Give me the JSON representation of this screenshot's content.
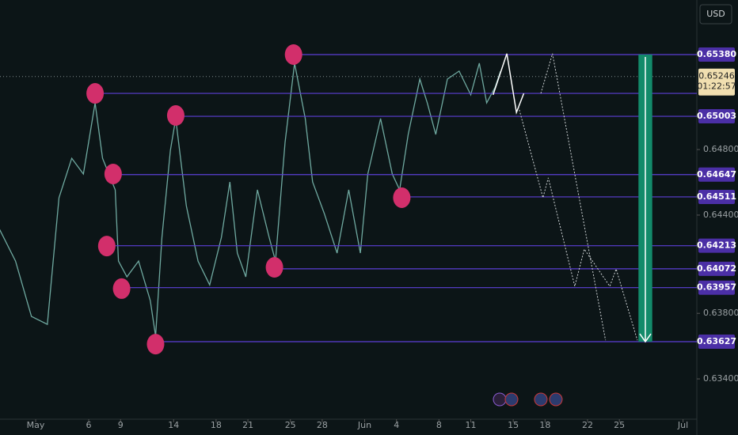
{
  "chart_data": {
    "type": "line",
    "currency": "USD",
    "x": [
      -3.4,
      -1.9,
      -0.4,
      1.1,
      2.2,
      3.4,
      4.5,
      5.6,
      6.3,
      7.5,
      7.8,
      8.6,
      9.7,
      10.8,
      11.3,
      11.9,
      12.7,
      13.2,
      14.2,
      15.3,
      16.4,
      17.5,
      18.3,
      19.0,
      19.8,
      20.9,
      22.0,
      22.6,
      23.5,
      24.4,
      25.4,
      26.1,
      27.2,
      28.4,
      29.5,
      30.6,
      31.3,
      32.5,
      33.6,
      34.3,
      35.1,
      36.2,
      36.9,
      37.7,
      38.8,
      39.9,
      41.0,
      41.8,
      42.5,
      43.3,
      43.8
    ],
    "values": [
      0.64313,
      0.64119,
      0.63781,
      0.63733,
      0.64506,
      0.64747,
      0.64651,
      0.65085,
      0.64747,
      0.64554,
      0.64119,
      0.64023,
      0.64119,
      0.63878,
      0.63661,
      0.64264,
      0.64796,
      0.64989,
      0.64457,
      0.64119,
      0.63974,
      0.64264,
      0.64602,
      0.64168,
      0.64023,
      0.64554,
      0.64264,
      0.64119,
      0.64844,
      0.65327,
      0.64989,
      0.64602,
      0.64409,
      0.64168,
      0.64554,
      0.64168,
      0.64651,
      0.64989,
      0.64651,
      0.64554,
      0.64892,
      0.6523,
      0.65085,
      0.64892,
      0.6523,
      0.65279,
      0.65134,
      0.65327,
      0.65085,
      0.65182,
      0.65279
    ],
    "color": "#6fa9a0",
    "xlim": [
      -3.36,
      62.3
    ],
    "ylim": [
      0.63154,
      0.65713
    ],
    "xticks": [
      {
        "value": 0,
        "label": "May"
      },
      {
        "value": 5,
        "label": "6"
      },
      {
        "value": 8,
        "label": "9"
      },
      {
        "value": 13,
        "label": "14"
      },
      {
        "value": 17,
        "label": "18"
      },
      {
        "value": 20,
        "label": "21"
      },
      {
        "value": 24,
        "label": "25"
      },
      {
        "value": 27,
        "label": "28"
      },
      {
        "value": 31,
        "label": "Jun"
      },
      {
        "value": 34,
        "label": "4"
      },
      {
        "value": 38,
        "label": "8"
      },
      {
        "value": 41,
        "label": "11"
      },
      {
        "value": 45,
        "label": "15"
      },
      {
        "value": 48,
        "label": "18"
      },
      {
        "value": 52,
        "label": "22"
      },
      {
        "value": 55,
        "label": "25"
      },
      {
        "value": 61,
        "label": "Jul"
      }
    ],
    "yticks": [
      {
        "value": 0.648,
        "label": "0.64800"
      },
      {
        "value": 0.644,
        "label": "0.64400"
      },
      {
        "value": 0.638,
        "label": "0.63800"
      },
      {
        "value": 0.634,
        "label": "0.63400"
      }
    ],
    "levels": [
      {
        "value": 0.6538,
        "label": "0.65380",
        "start": 24.3
      },
      {
        "value": 0.65143,
        "start": 5.6
      },
      {
        "value": 0.65003,
        "label": "0.65003",
        "start": 13.2
      },
      {
        "value": 0.64647,
        "label": "0.64647",
        "start": 7.3
      },
      {
        "value": 0.64511,
        "label": "0.64511",
        "start": 34.5
      },
      {
        "value": 0.64213,
        "label": "0.64213",
        "start": 6.7
      },
      {
        "value": 0.64072,
        "label": "0.64072",
        "start": 22.5
      },
      {
        "value": 0.63957,
        "label": "0.63957",
        "start": 8.1
      },
      {
        "value": 0.63627,
        "label": "0.63627",
        "start": 11.3
      }
    ],
    "current_price": {
      "value": 0.65246,
      "label": "0.65246",
      "countdown": "01:22:57"
    },
    "markers": {
      "x": [
        5.6,
        7.3,
        13.2,
        6.7,
        8.1,
        11.3,
        22.5,
        24.3,
        34.5
      ],
      "values": [
        0.65143,
        0.64651,
        0.65008,
        0.64211,
        0.63951,
        0.63612,
        0.64081,
        0.6538,
        0.64506
      ]
    },
    "projection": {
      "x": [
        43.1,
        44.4,
        45.3,
        46.0
      ],
      "values": [
        0.65134,
        0.65385,
        0.65027,
        0.65143
      ]
    },
    "projection_dotted": [
      {
        "x": [
          47.6,
          48.7,
          53.7
        ],
        "values": [
          0.65143,
          0.65385,
          0.63636
        ]
      },
      {
        "x": [
          45.5,
          47.8,
          48.3,
          50.8,
          51.7,
          54.1,
          54.7,
          56.7
        ],
        "values": [
          0.65061,
          0.64506,
          0.64627,
          0.63965,
          0.64192,
          0.63965,
          0.64071,
          0.63636
        ]
      }
    ],
    "target": {
      "x": [
        56.8,
        58.1
      ],
      "from": 0.6538,
      "to": 0.63627
    }
  }
}
